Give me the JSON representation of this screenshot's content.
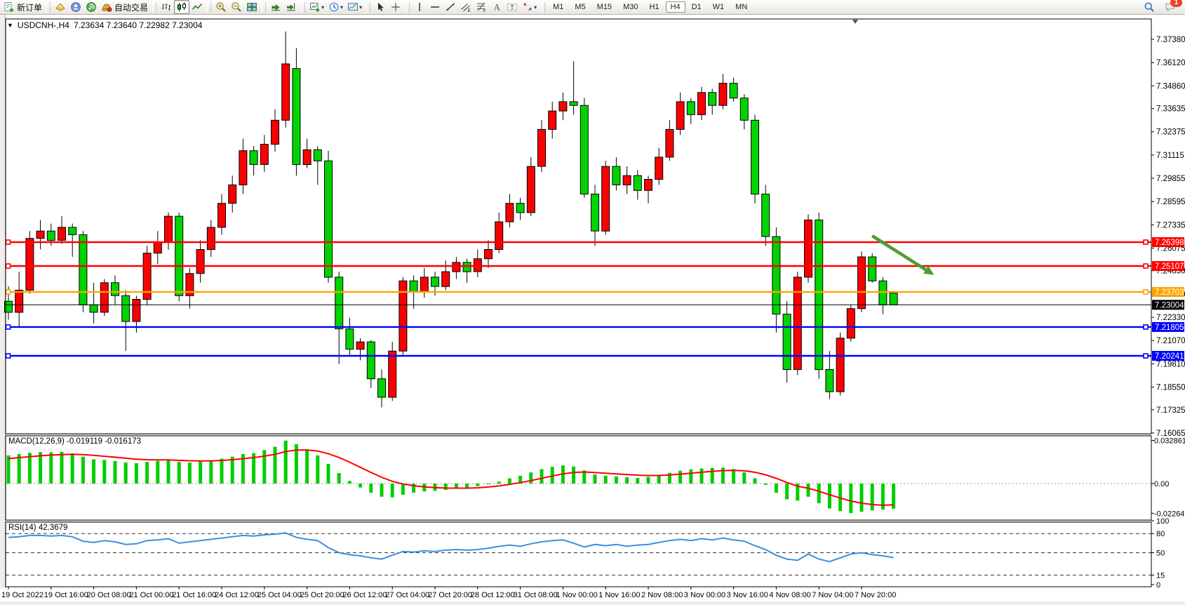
{
  "toolbar": {
    "groups": [
      {
        "items": [
          {
            "name": "new-order",
            "label": "新订单"
          }
        ]
      },
      {
        "items": [
          {
            "name": "editor"
          },
          {
            "name": "community"
          },
          {
            "name": "signals"
          },
          {
            "name": "autotrading",
            "label": "自动交易"
          }
        ]
      },
      {
        "items": [
          {
            "name": "bars-chart"
          },
          {
            "name": "candles-chart",
            "active": true
          },
          {
            "name": "line-chart"
          }
        ]
      },
      {
        "items": [
          {
            "name": "zoom-in"
          },
          {
            "name": "zoom-out"
          },
          {
            "name": "tile-windows"
          }
        ]
      },
      {
        "items": [
          {
            "name": "auto-scroll"
          },
          {
            "name": "chart-shift"
          }
        ]
      },
      {
        "items": [
          {
            "name": "new-chart",
            "dropdown": true
          },
          {
            "name": "periods",
            "dropdown": true
          },
          {
            "name": "templates",
            "dropdown": true
          }
        ]
      },
      {
        "items": [
          {
            "name": "cursor"
          },
          {
            "name": "crosshair"
          }
        ]
      },
      {
        "items": [
          {
            "name": "vertical-line"
          },
          {
            "name": "horizontal-line"
          },
          {
            "name": "trendline"
          },
          {
            "name": "equidistant-channel"
          },
          {
            "name": "fibonacci"
          },
          {
            "name": "text"
          },
          {
            "name": "text-label"
          },
          {
            "name": "arrows",
            "dropdown": true
          }
        ]
      }
    ],
    "timeframes": {
      "options": [
        "M1",
        "M5",
        "M15",
        "M30",
        "H1",
        "H4",
        "D1",
        "W1",
        "MN"
      ],
      "active": "H4"
    },
    "right": [
      {
        "name": "search"
      },
      {
        "name": "chat",
        "badge": "1"
      }
    ]
  },
  "chart_data": [
    {
      "type": "candlestick",
      "symbol": "USDCNH-",
      "timeframe": "H4",
      "title_text": "USDCNH-,H4",
      "ohlc_text": "7.23634 7.23640 7.22982 7.23004",
      "x_labels": [
        "19 Oct 2022",
        "19 Oct 16:00",
        "20 Oct 08:00",
        "21 Oct 00:00",
        "21 Oct 16:00",
        "24 Oct 12:00",
        "25 Oct 04:00",
        "25 Oct 20:00",
        "26 Oct 12:00",
        "27 Oct 04:00",
        "27 Oct 20:00",
        "28 Oct 12:00",
        "31 Oct 08:00",
        "1 Nov 00:00",
        "1 Nov 16:00",
        "2 Nov 08:00",
        "3 Nov 00:00",
        "3 Nov 16:00",
        "4 Nov 08:00",
        "7 Nov 04:00",
        "7 Nov 20:00"
      ],
      "y_ticks": [
        "7.37380",
        "7.36120",
        "7.34860",
        "7.33635",
        "7.32375",
        "7.31115",
        "7.29855",
        "7.28595",
        "7.27335",
        "7.26075",
        "7.24850",
        "7.23590",
        "7.22330",
        "7.21070",
        "7.19810",
        "7.18550",
        "7.17325",
        "7.16065"
      ],
      "ylim": [
        7.16065,
        7.3738
      ],
      "bull_color": "#fa0000",
      "bear_color": "#00d400",
      "wick_color": "#000000",
      "candles": [
        [
          7.232,
          7.24,
          7.222,
          7.226
        ],
        [
          7.226,
          7.248,
          7.218,
          7.238
        ],
        [
          7.238,
          7.27,
          7.236,
          7.266
        ],
        [
          7.266,
          7.276,
          7.26,
          7.27
        ],
        [
          7.27,
          7.274,
          7.262,
          7.265
        ],
        [
          7.265,
          7.278,
          7.263,
          7.272
        ],
        [
          7.272,
          7.274,
          7.256,
          7.268
        ],
        [
          7.268,
          7.27,
          7.226,
          7.23
        ],
        [
          7.23,
          7.242,
          7.22,
          7.226
        ],
        [
          7.226,
          7.244,
          7.224,
          7.242
        ],
        [
          7.242,
          7.246,
          7.23,
          7.235
        ],
        [
          7.235,
          7.238,
          7.205,
          7.221
        ],
        [
          7.221,
          7.235,
          7.215,
          7.233
        ],
        [
          7.233,
          7.262,
          7.23,
          7.258
        ],
        [
          7.258,
          7.27,
          7.252,
          7.264
        ],
        [
          7.264,
          7.28,
          7.26,
          7.278
        ],
        [
          7.278,
          7.28,
          7.232,
          7.235
        ],
        [
          7.235,
          7.25,
          7.228,
          7.247
        ],
        [
          7.247,
          7.265,
          7.242,
          7.26
        ],
        [
          7.26,
          7.276,
          7.256,
          7.272
        ],
        [
          7.272,
          7.29,
          7.268,
          7.285
        ],
        [
          7.285,
          7.3,
          7.28,
          7.295
        ],
        [
          7.295,
          7.32,
          7.29,
          7.3135
        ],
        [
          7.3135,
          7.316,
          7.3,
          7.306
        ],
        [
          7.306,
          7.322,
          7.302,
          7.317
        ],
        [
          7.317,
          7.336,
          7.313,
          7.33
        ],
        [
          7.33,
          7.378,
          7.326,
          7.3605
        ],
        [
          7.358,
          7.369,
          7.3,
          7.306
        ],
        [
          7.306,
          7.32,
          7.304,
          7.314
        ],
        [
          7.314,
          7.316,
          7.295,
          7.308
        ],
        [
          7.308,
          7.3135,
          7.242,
          7.245
        ],
        [
          7.245,
          7.248,
          7.198,
          7.217
        ],
        [
          7.217,
          7.223,
          7.202,
          7.206
        ],
        [
          7.206,
          7.212,
          7.2,
          7.21
        ],
        [
          7.21,
          7.211,
          7.185,
          7.19
        ],
        [
          7.19,
          7.195,
          7.1745,
          7.18
        ],
        [
          7.18,
          7.21,
          7.178,
          7.205
        ],
        [
          7.205,
          7.245,
          7.203,
          7.243
        ],
        [
          7.243,
          7.246,
          7.228,
          7.237
        ],
        [
          7.237,
          7.25,
          7.234,
          7.245
        ],
        [
          7.245,
          7.248,
          7.235,
          7.24
        ],
        [
          7.24,
          7.254,
          7.238,
          7.248
        ],
        [
          7.248,
          7.256,
          7.244,
          7.253
        ],
        [
          7.253,
          7.255,
          7.242,
          7.248
        ],
        [
          7.248,
          7.26,
          7.245,
          7.255
        ],
        [
          7.255,
          7.265,
          7.25,
          7.26
        ],
        [
          7.26,
          7.28,
          7.258,
          7.275
        ],
        [
          7.275,
          7.29,
          7.272,
          7.285
        ],
        [
          7.285,
          7.288,
          7.276,
          7.28
        ],
        [
          7.28,
          7.31,
          7.278,
          7.305
        ],
        [
          7.305,
          7.33,
          7.302,
          7.325
        ],
        [
          7.325,
          7.34,
          7.32,
          7.335
        ],
        [
          7.335,
          7.345,
          7.33,
          7.34
        ],
        [
          7.34,
          7.362,
          7.333,
          7.338
        ],
        [
          7.338,
          7.342,
          7.288,
          7.29
        ],
        [
          7.29,
          7.295,
          7.262,
          7.27
        ],
        [
          7.27,
          7.308,
          7.268,
          7.305
        ],
        [
          7.305,
          7.31,
          7.292,
          7.295
        ],
        [
          7.295,
          7.305,
          7.29,
          7.3
        ],
        [
          7.3,
          7.303,
          7.287,
          7.292
        ],
        [
          7.292,
          7.3,
          7.285,
          7.298
        ],
        [
          7.298,
          7.315,
          7.295,
          7.31
        ],
        [
          7.31,
          7.33,
          7.308,
          7.325
        ],
        [
          7.325,
          7.345,
          7.322,
          7.34
        ],
        [
          7.34,
          7.342,
          7.328,
          7.333
        ],
        [
          7.333,
          7.348,
          7.33,
          7.345
        ],
        [
          7.345,
          7.347,
          7.333,
          7.338
        ],
        [
          7.338,
          7.355,
          7.336,
          7.35
        ],
        [
          7.35,
          7.353,
          7.34,
          7.342
        ],
        [
          7.342,
          7.344,
          7.325,
          7.33
        ],
        [
          7.33,
          7.333,
          7.285,
          7.29
        ],
        [
          7.29,
          7.295,
          7.262,
          7.267
        ],
        [
          7.267,
          7.272,
          7.215,
          7.225
        ],
        [
          7.225,
          7.232,
          7.188,
          7.195
        ],
        [
          7.195,
          7.248,
          7.192,
          7.245
        ],
        [
          7.245,
          7.279,
          7.242,
          7.276
        ],
        [
          7.276,
          7.28,
          7.19,
          7.195
        ],
        [
          7.195,
          7.205,
          7.179,
          7.183
        ],
        [
          7.183,
          7.215,
          7.181,
          7.212
        ],
        [
          7.212,
          7.23,
          7.21,
          7.228
        ],
        [
          7.228,
          7.259,
          7.226,
          7.256
        ],
        [
          7.256,
          7.258,
          7.242,
          7.243
        ],
        [
          7.243,
          7.245,
          7.225,
          7.23
        ],
        [
          7.23634,
          7.2364,
          7.22982,
          7.23004
        ]
      ],
      "levels": [
        {
          "price": 7.26398,
          "label": "7.26398",
          "color": "#ff0000"
        },
        {
          "price": 7.25107,
          "label": "7.25107",
          "color": "#ff0000"
        },
        {
          "price": 7.23703,
          "label": "7.23703",
          "color": "#ffa300"
        },
        {
          "price": 7.21805,
          "label": "7.21805",
          "color": "#0000ff"
        },
        {
          "price": 7.20241,
          "label": "7.20241",
          "color": "#0000ff"
        }
      ],
      "current_price": {
        "value": 7.23004,
        "label": "7.23004",
        "color": "#000000"
      },
      "annotation_arrow": {
        "bar_from": 81,
        "price_from": 7.2674,
        "bar_to": 86.8,
        "price_to": 7.2462,
        "color": "#4d9e30"
      }
    },
    {
      "type": "histogram+line",
      "label": "MACD(12,26,9) -0.019119 -0.016173",
      "y_ticks": [
        "0.032861",
        "0.00",
        "-0.022641"
      ],
      "ylim": [
        -0.022641,
        0.032861
      ],
      "hist_color": "#00ce00",
      "signal_color": "#ff0000",
      "histogram": [
        0.0215,
        0.0225,
        0.0235,
        0.024,
        0.0238,
        0.0242,
        0.023,
        0.0205,
        0.0185,
        0.018,
        0.0172,
        0.016,
        0.0155,
        0.0165,
        0.0172,
        0.018,
        0.0165,
        0.016,
        0.0168,
        0.0178,
        0.019,
        0.0205,
        0.0225,
        0.0232,
        0.0255,
        0.028,
        0.0328,
        0.03,
        0.026,
        0.0215,
        0.015,
        0.008,
        0.002,
        -0.003,
        -0.007,
        -0.01,
        -0.0105,
        -0.0085,
        -0.007,
        -0.006,
        -0.0055,
        -0.0048,
        -0.004,
        -0.0032,
        -0.002,
        -0.0005,
        0.0015,
        0.004,
        0.006,
        0.0085,
        0.011,
        0.0128,
        0.0138,
        0.013,
        0.01,
        0.007,
        0.006,
        0.0055,
        0.0048,
        0.0042,
        0.005,
        0.0065,
        0.0082,
        0.0098,
        0.0108,
        0.0115,
        0.012,
        0.0122,
        0.011,
        0.0085,
        0.004,
        -0.001,
        -0.007,
        -0.012,
        -0.013,
        -0.01,
        -0.015,
        -0.019,
        -0.021,
        -0.0225,
        -0.0215,
        -0.0205,
        -0.0198,
        -0.0192
      ],
      "signal": [
        0.019,
        0.0198,
        0.0205,
        0.0212,
        0.0217,
        0.0221,
        0.0223,
        0.0221,
        0.0215,
        0.0208,
        0.0201,
        0.0193,
        0.0186,
        0.0182,
        0.018,
        0.018,
        0.0177,
        0.0174,
        0.0172,
        0.0173,
        0.0176,
        0.0182,
        0.019,
        0.0198,
        0.0209,
        0.0223,
        0.0244,
        0.0255,
        0.0256,
        0.0248,
        0.0228,
        0.0199,
        0.0163,
        0.0124,
        0.0085,
        0.0048,
        0.0017,
        -0.0003,
        -0.0016,
        -0.0025,
        -0.0031,
        -0.0034,
        -0.0035,
        -0.0035,
        -0.0032,
        -0.0026,
        -0.0018,
        -0.0006,
        0.0007,
        0.0023,
        0.004,
        0.0058,
        0.0074,
        0.0085,
        0.0088,
        0.0084,
        0.0079,
        0.0074,
        0.0069,
        0.0064,
        0.0061,
        0.0062,
        0.0066,
        0.0072,
        0.0079,
        0.0086,
        0.0093,
        0.0099,
        0.0101,
        0.0098,
        0.0086,
        0.0067,
        0.004,
        0.0008,
        -0.002,
        -0.0036,
        -0.0059,
        -0.0085,
        -0.011,
        -0.0133,
        -0.0149,
        -0.016,
        -0.0165,
        -0.0162
      ]
    },
    {
      "type": "line",
      "label": "RSI(14) 42.3679",
      "y_ticks": [
        "100",
        "80",
        "50",
        "15",
        "0"
      ],
      "levels": [
        80,
        50,
        15
      ],
      "ylim": [
        0,
        100
      ],
      "color": "#3a8fdd",
      "values": [
        74,
        75,
        77,
        77,
        76,
        77,
        75,
        68,
        66,
        69,
        67,
        63,
        64,
        69,
        70,
        72,
        65,
        67,
        69,
        71,
        73,
        75,
        77,
        76,
        78,
        79,
        81,
        74,
        71,
        69,
        58,
        50,
        47,
        45,
        42,
        40,
        46,
        52,
        51,
        53,
        52,
        54,
        55,
        54,
        55,
        57,
        60,
        62,
        60,
        64,
        67,
        69,
        70,
        65,
        59,
        63,
        61,
        63,
        60,
        62,
        63,
        66,
        69,
        71,
        69,
        72,
        70,
        73,
        70,
        68,
        61,
        55,
        46,
        40,
        38,
        48,
        40,
        36,
        42,
        48,
        50,
        47,
        45,
        42.37
      ]
    }
  ]
}
